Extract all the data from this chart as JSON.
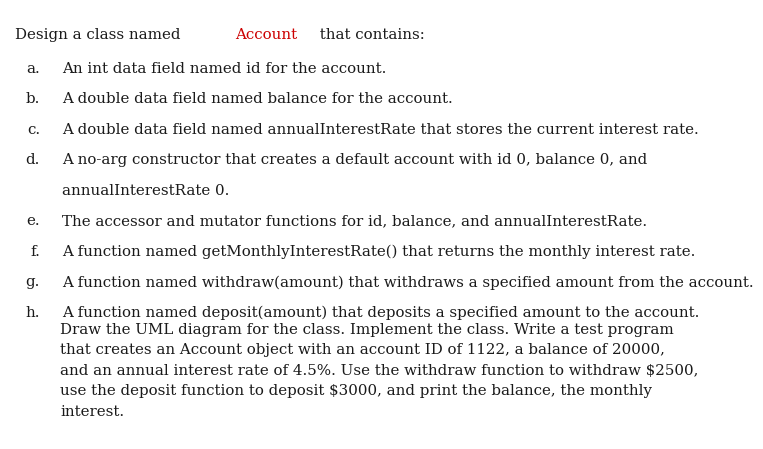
{
  "bg_color": "#ffffff",
  "title_normal": "Design a class named ",
  "title_colored": "Account",
  "title_colored_color": "#cc0000",
  "title_rest": " that contains:",
  "items": [
    {
      "label": "a.",
      "line1": "An int data field named id for the account.",
      "line2": null
    },
    {
      "label": "b.",
      "line1": "A double data field named balance for the account.",
      "line2": null
    },
    {
      "label": "c.",
      "line1": "A double data field named annualInterestRate that stores the current interest rate.",
      "line2": null
    },
    {
      "label": "d.",
      "line1": "A no-arg constructor that creates a default account with id 0, balance 0, and",
      "line2": "annualInterestRate 0."
    },
    {
      "label": "e.",
      "line1": "The accessor and mutator functions for id, balance, and annualInterestRate.",
      "line2": null
    },
    {
      "label": "f.",
      "line1": "A function named getMonthlyInterestRate() that returns the monthly interest rate.",
      "line2": null
    },
    {
      "label": "g.",
      "line1": "A function named withdraw(amount) that withdraws a specified amount from the account.",
      "line2": null
    },
    {
      "label": "h.",
      "line1": "A function named deposit(amount) that deposits a specified amount to the account.",
      "line2": null
    }
  ],
  "footer_lines": [
    "Draw the UML diagram for the class. Implement the class. Write a test program",
    "that creates an Account object with an account ID of 1122, a balance of 20000,",
    "and an annual interest rate of 4.5%. Use the withdraw function to withdraw $2500,",
    "use the deposit function to deposit $3000, and print the balance, the monthly",
    "interest."
  ],
  "font_size": 10.8,
  "font_family": "DejaVu Serif",
  "text_color": "#1a1a1a"
}
